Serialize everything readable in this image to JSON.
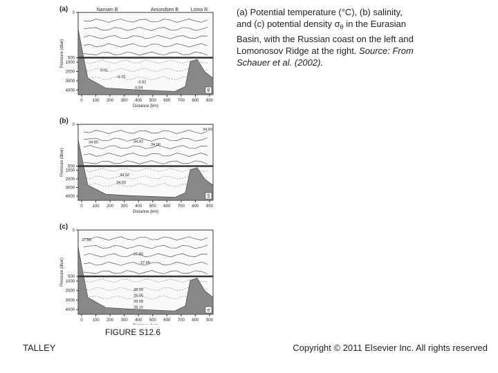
{
  "caption": {
    "parts": [
      "(a) Potential temperature (°C), (b) salinity, and (c) potential density ",
      "σ",
      "θ",
      " in the Eurasian Basin, with the Russian coast on the left and Lomonosov Ridge at the right. ",
      "Source: From Schauer et al. (2002)."
    ]
  },
  "figure": {
    "label": "FIGURE S12.6",
    "panels": [
      {
        "letter": "(a)",
        "top_labels": [
          "Nansen B",
          "Amundsen B",
          "Lomo R"
        ],
        "y_label": "Pressure (dbar)",
        "x_label": "Distance (km)",
        "yticks": [
          0,
          500,
          1000,
          2000,
          3000,
          4000
        ],
        "xticks": [
          0,
          100,
          200,
          300,
          400,
          500,
          600,
          700,
          800,
          900
        ],
        "xlim": [
          0,
          900
        ],
        "corner": "θ",
        "contour_labels": [
          "-0.91",
          "-0.70",
          "-0.82",
          "-0.84"
        ]
      },
      {
        "letter": "(b)",
        "y_label": "Pressure (dbar)",
        "x_label": "Distance (km)",
        "yticks": [
          0,
          500,
          1000,
          2000,
          3000,
          4000
        ],
        "xticks": [
          0,
          100,
          200,
          300,
          400,
          500,
          600,
          700,
          800,
          900
        ],
        "xlim": [
          0,
          900
        ],
        "corner": "S",
        "contour_labels": [
          "34.80",
          "34.92",
          "34.90",
          "34.93",
          "34.92",
          "34.93"
        ]
      },
      {
        "letter": "(c)",
        "y_label": "Pressure (dbar)",
        "x_label": "Distance (km)",
        "yticks": [
          0,
          500,
          1000,
          2000,
          3000,
          4000
        ],
        "xticks": [
          0,
          100,
          200,
          300,
          400,
          500,
          600,
          700,
          800,
          900
        ],
        "xlim": [
          0,
          900
        ],
        "corner": "σ",
        "contour_labels": [
          "27.50",
          "27.80",
          "27.95",
          "28.00",
          "28.05",
          "28.08",
          "28.10"
        ]
      }
    ]
  },
  "footer": {
    "author": "TALLEY",
    "copyright": "Copyright © 2011 Elsevier Inc. All rights reserved"
  }
}
